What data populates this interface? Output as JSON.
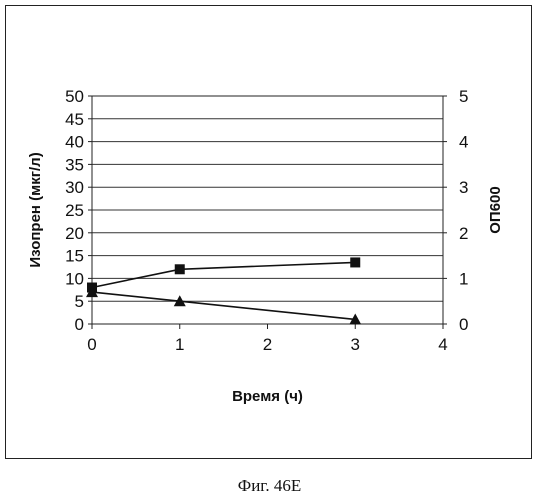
{
  "caption": "Фиг. 46E",
  "chart_data": {
    "type": "line",
    "x": [
      0,
      1,
      3
    ],
    "xlabel": "Время (ч)",
    "ylabel": "Изопрен (мкг/л)",
    "ylabel_right": "ОП600",
    "xlim": [
      0,
      4
    ],
    "ylim": [
      0,
      50
    ],
    "ylim_right": [
      0,
      5
    ],
    "x_ticks": [
      "0",
      "1",
      "2",
      "3",
      "4"
    ],
    "y_ticks": [
      "0",
      "5",
      "10",
      "15",
      "20",
      "25",
      "30",
      "35",
      "40",
      "45",
      "50"
    ],
    "y_ticks_right": [
      "0",
      "1",
      "2",
      "3",
      "4",
      "5"
    ],
    "grid": "horizontal",
    "series": [
      {
        "values": [
          8,
          12,
          13.5
        ],
        "axis": "left",
        "marker": "square",
        "color": "#111111"
      },
      {
        "values": [
          7,
          5,
          1
        ],
        "axis": "left",
        "marker": "triangle",
        "color": "#111111"
      }
    ]
  }
}
